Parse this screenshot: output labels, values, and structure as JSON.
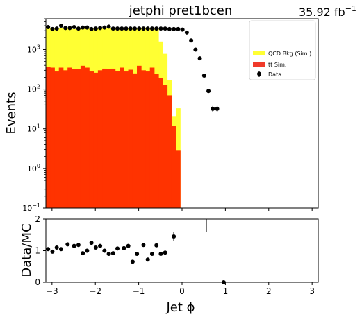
{
  "chart_data": [
    {
      "type": "bar",
      "title": "jetphi  pret1bcen",
      "luminosity_label": "35.92 fb",
      "luminosity_exponent": "−1",
      "ylabel": "Events",
      "yscale": "log",
      "ylim": [
        0.1,
        6000
      ],
      "xlim": [
        -3.14159,
        3.14159
      ],
      "y_tick_labels": [
        {
          "base": "10",
          "exp": "−1",
          "value": 0.1
        },
        {
          "base": "10",
          "exp": "0",
          "value": 1
        },
        {
          "base": "10",
          "exp": "1",
          "value": 10
        },
        {
          "base": "10",
          "exp": "2",
          "value": 100
        },
        {
          "base": "10",
          "exp": "3",
          "value": 1000
        }
      ],
      "bin_edges_start": -3.14159,
      "bin_width": 0.1,
      "legend": {
        "placement": "top-right",
        "entries": [
          {
            "label": "QCD Bkg (Sim.)",
            "color": "#ffff33",
            "kind": "fill"
          },
          {
            "label_prefix": "t",
            "label_bar": "t",
            "label_suffix": " Sim.",
            "label": "tt Sim.",
            "color": "#f03a2a",
            "kind": "fill"
          },
          {
            "label": "Data",
            "color": "#000000",
            "kind": "errorbar"
          }
        ]
      },
      "series": [
        {
          "name": "tt Sim.",
          "color": "#ff3300",
          "values": [
            370,
            350,
            280,
            350,
            300,
            350,
            320,
            320,
            390,
            350,
            280,
            260,
            300,
            330,
            320,
            330,
            290,
            350,
            280,
            310,
            250,
            390,
            300,
            280,
            350,
            240,
            190,
            130,
            70,
            12,
            2.8
          ]
        },
        {
          "name": "QCD Bkg (Sim.) + tt Sim. (stacked total)",
          "color": "#ffff33",
          "values": [
            3500,
            3400,
            3200,
            3500,
            3400,
            3400,
            3300,
            3500,
            3500,
            3400,
            3300,
            3400,
            3400,
            3500,
            3400,
            3400,
            3500,
            3400,
            3500,
            3400,
            3400,
            3500,
            3600,
            3500,
            3400,
            3300,
            1600,
            780,
            170,
            21,
            33
          ]
        },
        {
          "name": "Data",
          "color": "#000000",
          "x": [
            -3.09,
            -2.99,
            -2.89,
            -2.79,
            -2.69,
            -2.59,
            -2.49,
            -2.39,
            -2.29,
            -2.19,
            -2.09,
            -1.99,
            -1.89,
            -1.79,
            -1.69,
            -1.59,
            -1.49,
            -1.39,
            -1.29,
            -1.19,
            -1.09,
            -0.99,
            -0.89,
            -0.79,
            -0.69,
            -0.59,
            -0.49,
            -0.39,
            -0.29,
            -0.19,
            -0.09,
            0.01,
            0.11,
            0.21,
            0.31,
            0.41,
            0.51,
            0.61,
            0.71,
            0.81
          ],
          "values": [
            3700,
            3300,
            3400,
            4000,
            3500,
            3500,
            3700,
            3400,
            3600,
            3600,
            3300,
            3400,
            3500,
            3600,
            3800,
            3400,
            3400,
            3400,
            3400,
            3400,
            3400,
            3400,
            3400,
            3400,
            3400,
            3400,
            3400,
            3400,
            3300,
            3300,
            3300,
            3200,
            2700,
            1700,
            1000,
            600,
            220,
            90,
            32,
            32
          ]
        }
      ]
    },
    {
      "type": "scatter",
      "ylabel": "Data/MC",
      "xlabel": "Jet ϕ",
      "ylim": [
        0,
        2
      ],
      "xlim": [
        -3.14159,
        3.14159
      ],
      "y_tick_labels": [
        "0",
        "1",
        "2"
      ],
      "x_tick_labels": [
        "−3",
        "−2",
        "−1",
        "0",
        "1",
        "2",
        "3"
      ],
      "x_tick_values": [
        -3,
        -2,
        -1,
        0,
        1,
        2,
        3
      ],
      "points": [
        {
          "x": -3.09,
          "y": 1.05
        },
        {
          "x": -2.99,
          "y": 0.97
        },
        {
          "x": -2.89,
          "y": 1.1
        },
        {
          "x": -2.79,
          "y": 1.05
        },
        {
          "x": -2.64,
          "y": 1.2
        },
        {
          "x": -2.49,
          "y": 1.15
        },
        {
          "x": -2.39,
          "y": 1.18
        },
        {
          "x": -2.29,
          "y": 0.92
        },
        {
          "x": -2.19,
          "y": 1.0
        },
        {
          "x": -2.09,
          "y": 1.25
        },
        {
          "x": -1.99,
          "y": 1.1
        },
        {
          "x": -1.89,
          "y": 1.15
        },
        {
          "x": -1.79,
          "y": 1.0
        },
        {
          "x": -1.69,
          "y": 0.9
        },
        {
          "x": -1.59,
          "y": 0.92
        },
        {
          "x": -1.49,
          "y": 1.07
        },
        {
          "x": -1.34,
          "y": 1.08
        },
        {
          "x": -1.24,
          "y": 1.15
        },
        {
          "x": -1.14,
          "y": 0.65
        },
        {
          "x": -1.04,
          "y": 0.9
        },
        {
          "x": -0.89,
          "y": 1.18
        },
        {
          "x": -0.79,
          "y": 0.72
        },
        {
          "x": -0.69,
          "y": 0.9
        },
        {
          "x": -0.59,
          "y": 1.17
        },
        {
          "x": -0.49,
          "y": 0.9
        },
        {
          "x": -0.39,
          "y": 0.94
        },
        {
          "x": -0.19,
          "y": 1.45,
          "err": 0.15
        },
        {
          "x": 0.56,
          "y": 2.0,
          "err": 0.4
        },
        {
          "x": 0.96,
          "y": 0.0
        }
      ]
    }
  ]
}
